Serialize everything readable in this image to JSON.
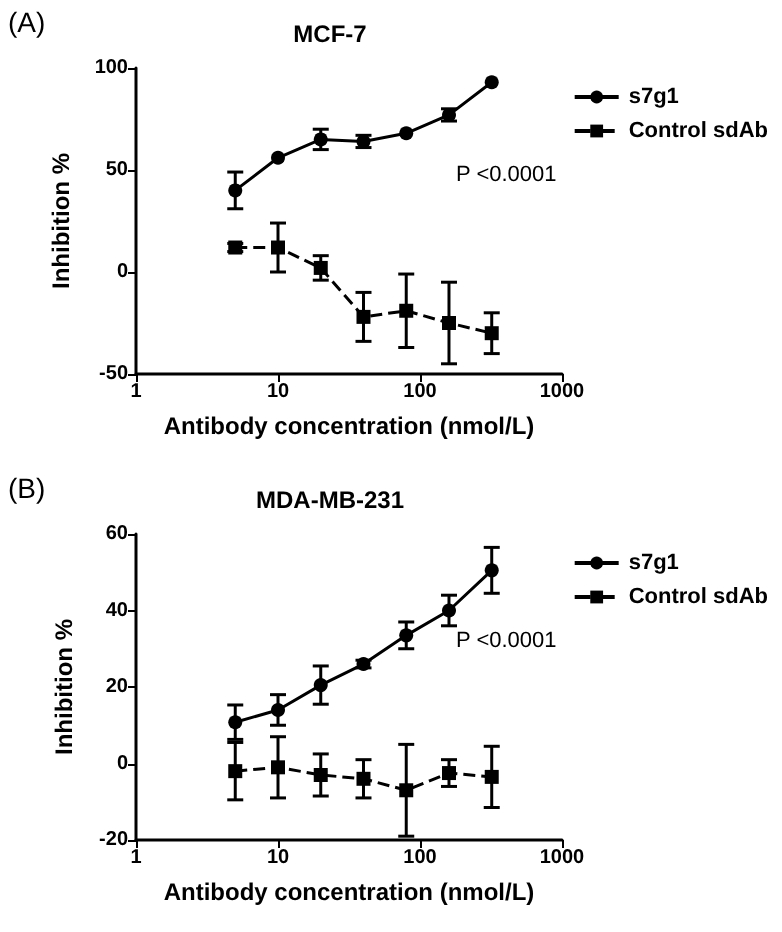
{
  "chart_data": [
    {
      "type": "line",
      "title": "MCF-7",
      "xlabel": "Antibody concentration (nmol/L)",
      "ylabel": "Inhibition %",
      "annotations": [
        "(A)",
        "P <0.0001"
      ],
      "x": [
        5,
        10,
        20,
        40,
        80,
        160,
        320
      ],
      "log": "x",
      "xlim": [
        1,
        1000
      ],
      "xticks": [
        1,
        10,
        100,
        1000
      ],
      "ylim": [
        -50,
        100
      ],
      "yticks": [
        -50,
        0,
        50,
        100
      ],
      "grid": false,
      "legend": "top right",
      "series": [
        {
          "name": "s7g1",
          "color": "#000000",
          "marker": "circle",
          "line_style": "solid",
          "values": [
            40,
            56,
            65,
            64,
            68,
            77,
            93
          ],
          "errors": [
            9,
            null,
            5,
            3,
            null,
            3,
            null
          ]
        },
        {
          "name": "Control sdAb",
          "color": "#000000",
          "marker": "square",
          "line_style": "dashed",
          "values": [
            12,
            12,
            2,
            -22,
            -19,
            -25,
            -30
          ],
          "errors": [
            2,
            12,
            6,
            12,
            18,
            20,
            10
          ]
        }
      ]
    },
    {
      "type": "line",
      "title": "MDA-MB-231",
      "xlabel": "Antibody concentration (nmol/L)",
      "ylabel": "Inhibition %",
      "annotations": [
        "(B)",
        "P <0.0001"
      ],
      "x": [
        5,
        10,
        20,
        40,
        80,
        160,
        320
      ],
      "log": "x",
      "xlim": [
        1,
        1000
      ],
      "xticks": [
        1,
        10,
        100,
        1000
      ],
      "ylim": [
        -20,
        60
      ],
      "yticks": [
        -20,
        0,
        20,
        40,
        60
      ],
      "grid": false,
      "legend": "top right",
      "series": [
        {
          "name": "s7g1",
          "color": "#000000",
          "marker": "circle",
          "line_style": "solid",
          "values": [
            10.8,
            14,
            20.5,
            26,
            33.5,
            40,
            50.5
          ],
          "errors": [
            4.5,
            4,
            5,
            1,
            3.5,
            4,
            6
          ]
        },
        {
          "name": "Control sdAb",
          "color": "#000000",
          "marker": "square",
          "line_style": "dashed",
          "values": [
            -2,
            -1,
            -3,
            -4,
            -7,
            -2.5,
            -3.5
          ],
          "errors": [
            7.5,
            8,
            5.5,
            5,
            12,
            3.5,
            8
          ]
        }
      ]
    }
  ]
}
